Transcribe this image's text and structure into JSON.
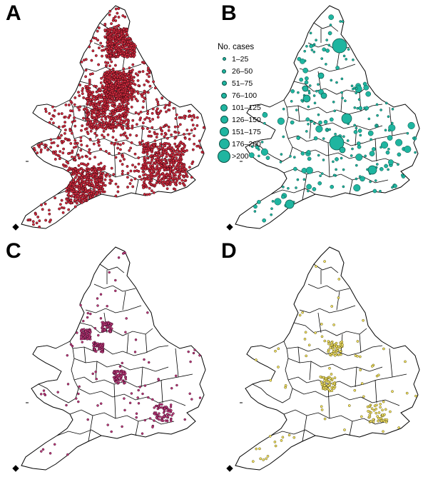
{
  "panels": [
    {
      "letter": "A",
      "fill": "#d12a3e",
      "stroke": "#3a0a10",
      "density": "very-high"
    },
    {
      "letter": "B",
      "fill": "#1fb5a0",
      "stroke": "#0a4f44",
      "density": "graduated"
    },
    {
      "letter": "C",
      "fill": "#c23a7a",
      "stroke": "#3a0a2a",
      "density": "medium"
    },
    {
      "letter": "D",
      "fill": "#f2e266",
      "stroke": "#5a5010",
      "density": "low"
    }
  ],
  "legend": {
    "title": "No. cases",
    "items": [
      {
        "label": "1–25",
        "size": 3
      },
      {
        "label": "26–50",
        "size": 4
      },
      {
        "label": "51–75",
        "size": 5
      },
      {
        "label": "76–100",
        "size": 6
      },
      {
        "label": "101–125",
        "size": 8
      },
      {
        "label": "126–150",
        "size": 9
      },
      {
        "label": "151–175",
        "size": 11
      },
      {
        "label": "176–200",
        "size": 13
      },
      {
        "label": ">200",
        "size": 16
      }
    ],
    "color": "#1fb5a0"
  }
}
